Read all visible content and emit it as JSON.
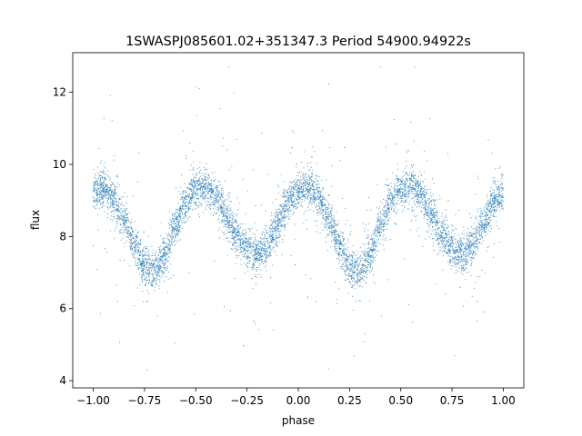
{
  "chart_data": {
    "type": "scatter",
    "title": "1SWASPJ085601.02+351347.3 Period 54900.94922s",
    "xlabel": "phase",
    "ylabel": "flux",
    "xlim": [
      -1.1,
      1.1
    ],
    "ylim": [
      3.8,
      13.1
    ],
    "xticks": [
      {
        "value": -1.0,
        "label": "−1.00"
      },
      {
        "value": -0.75,
        "label": "−0.75"
      },
      {
        "value": -0.5,
        "label": "−0.50"
      },
      {
        "value": -0.25,
        "label": "−0.25"
      },
      {
        "value": 0.0,
        "label": "0.00"
      },
      {
        "value": 0.25,
        "label": "0.25"
      },
      {
        "value": 0.5,
        "label": "0.50"
      },
      {
        "value": 0.75,
        "label": "0.75"
      },
      {
        "value": 1.0,
        "label": "1.00"
      }
    ],
    "yticks": [
      {
        "value": 4,
        "label": "4"
      },
      {
        "value": 6,
        "label": "6"
      },
      {
        "value": 8,
        "label": "8"
      },
      {
        "value": 10,
        "label": "10"
      },
      {
        "value": 12,
        "label": "12"
      }
    ],
    "grid": false,
    "marker_color": "#1f77b4",
    "series": [
      {
        "name": "",
        "x_range": [
          -1.0,
          1.0
        ],
        "profile": [
          {
            "phase": -1.0,
            "flux": 9.2
          },
          {
            "phase": -0.95,
            "flux": 9.35
          },
          {
            "phase": -0.9,
            "flux": 9.05
          },
          {
            "phase": -0.85,
            "flux": 8.45
          },
          {
            "phase": -0.8,
            "flux": 7.75
          },
          {
            "phase": -0.75,
            "flux": 7.2
          },
          {
            "phase": -0.7,
            "flux": 7.05
          },
          {
            "phase": -0.65,
            "flux": 7.5
          },
          {
            "phase": -0.6,
            "flux": 8.3
          },
          {
            "phase": -0.55,
            "flux": 8.95
          },
          {
            "phase": -0.5,
            "flux": 9.3
          },
          {
            "phase": -0.45,
            "flux": 9.35
          },
          {
            "phase": -0.4,
            "flux": 9.1
          },
          {
            "phase": -0.35,
            "flux": 8.6
          },
          {
            "phase": -0.3,
            "flux": 8.0
          },
          {
            "phase": -0.25,
            "flux": 7.65
          },
          {
            "phase": -0.2,
            "flux": 7.5
          },
          {
            "phase": -0.15,
            "flux": 7.75
          },
          {
            "phase": -0.1,
            "flux": 8.35
          },
          {
            "phase": -0.05,
            "flux": 8.95
          },
          {
            "phase": 0.0,
            "flux": 9.2
          },
          {
            "phase": 0.05,
            "flux": 9.35
          },
          {
            "phase": 0.1,
            "flux": 9.05
          },
          {
            "phase": 0.15,
            "flux": 8.45
          },
          {
            "phase": 0.2,
            "flux": 7.75
          },
          {
            "phase": 0.25,
            "flux": 7.2
          },
          {
            "phase": 0.3,
            "flux": 7.05
          },
          {
            "phase": 0.35,
            "flux": 7.5
          },
          {
            "phase": 0.4,
            "flux": 8.3
          },
          {
            "phase": 0.45,
            "flux": 8.95
          },
          {
            "phase": 0.5,
            "flux": 9.3
          },
          {
            "phase": 0.55,
            "flux": 9.35
          },
          {
            "phase": 0.6,
            "flux": 9.1
          },
          {
            "phase": 0.65,
            "flux": 8.6
          },
          {
            "phase": 0.7,
            "flux": 8.0
          },
          {
            "phase": 0.75,
            "flux": 7.65
          },
          {
            "phase": 0.8,
            "flux": 7.5
          },
          {
            "phase": 0.85,
            "flux": 7.75
          },
          {
            "phase": 0.9,
            "flux": 8.35
          },
          {
            "phase": 0.95,
            "flux": 8.95
          },
          {
            "phase": 1.0,
            "flux": 9.2
          }
        ],
        "scatter_spread": 0.25,
        "outlier_range": [
          4.2,
          12.7
        ]
      }
    ]
  }
}
